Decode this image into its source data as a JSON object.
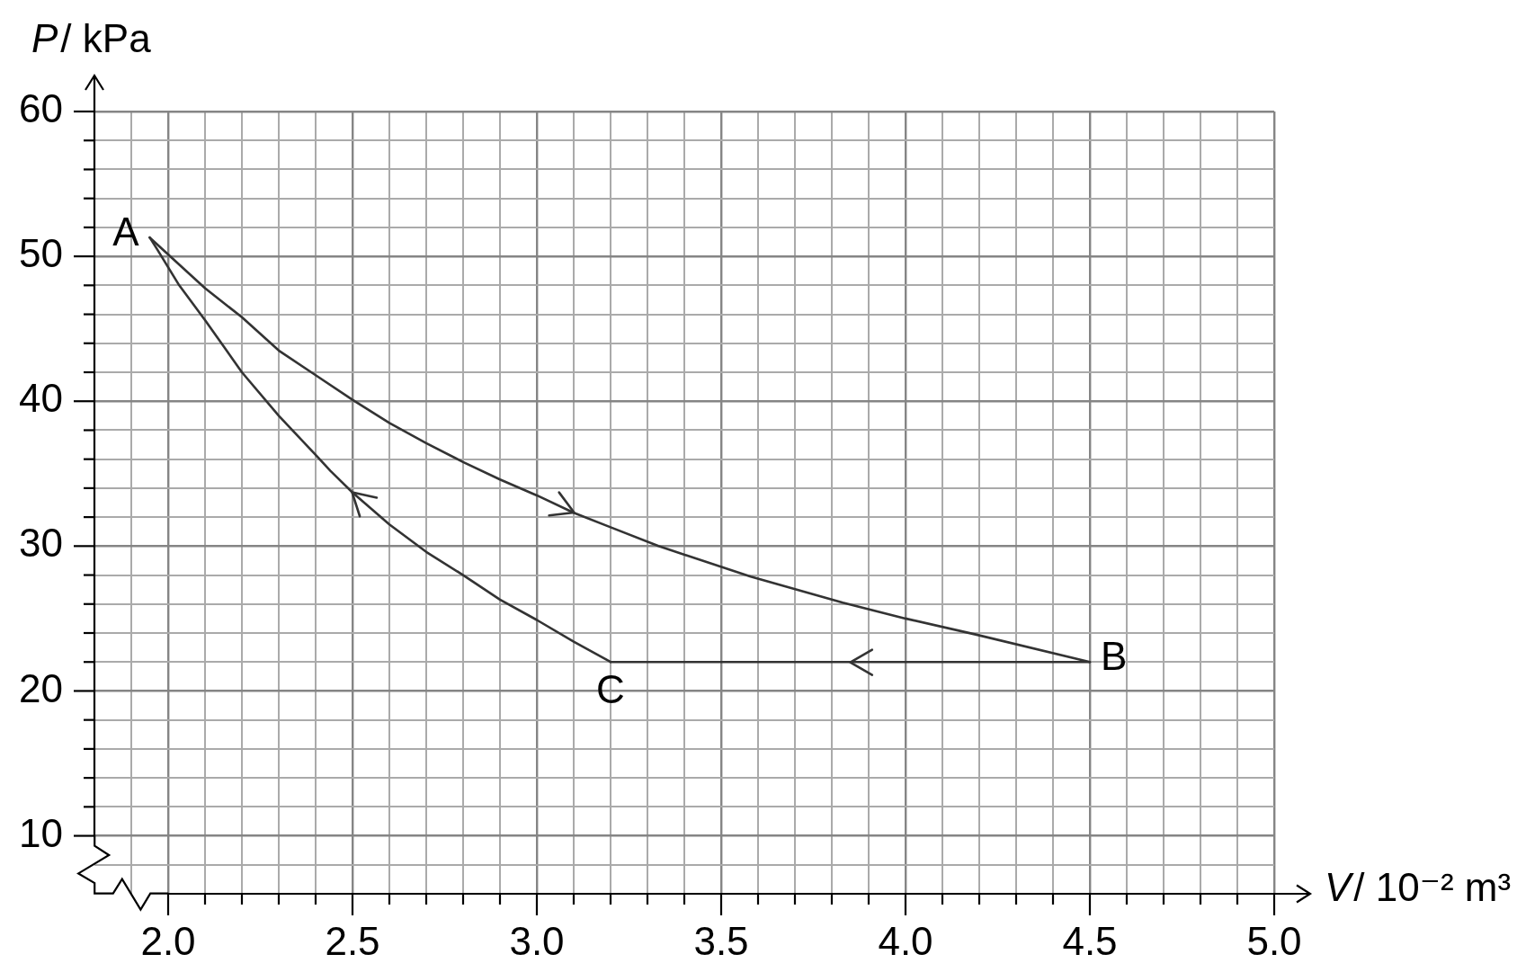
{
  "chart_data": {
    "type": "line",
    "xlabel": "V/ 10⁻² m³",
    "ylabel": "P/ kPa",
    "series": [
      {
        "color": "#333333",
        "x": [
          1.95,
          2.1,
          2.2,
          2.3,
          2.4,
          2.5,
          2.6,
          2.7,
          2.8,
          2.9,
          3.0,
          3.1,
          3.2,
          3.33,
          3.58,
          3.83,
          4.0,
          4.19,
          4.5
        ],
        "values": [
          51.3,
          47.8,
          45.8,
          43.5,
          41.8,
          40.1,
          38.5,
          37.1,
          35.8,
          34.6,
          33.5,
          32.3,
          31.3,
          30.0,
          27.9,
          26.1,
          25.0,
          23.9,
          22.0
        ]
      },
      {
        "color": "#333333",
        "x": [
          4.5,
          3.2
        ],
        "values": [
          22.0,
          22.0
        ]
      },
      {
        "color": "#333333",
        "x": [
          3.2,
          3.1,
          3.0,
          2.9,
          2.8,
          2.7,
          2.6,
          2.5,
          2.44,
          2.4,
          2.3,
          2.2,
          2.1,
          2.03,
          1.97,
          1.95
        ],
        "values": [
          22.0,
          23.4,
          24.9,
          26.3,
          28.0,
          29.6,
          31.5,
          33.7,
          35.2,
          36.3,
          39.0,
          42.0,
          45.6,
          48.0,
          50.5,
          51.3
        ]
      }
    ],
    "xlim": [
      1.8,
      5.0
    ],
    "ylim": [
      6,
      60
    ],
    "xticks": [
      {
        "value": 1.9,
        "label": null
      },
      {
        "value": 2,
        "label": "2.0"
      },
      {
        "value": 2.1,
        "label": null
      },
      {
        "value": 2.2,
        "label": null
      },
      {
        "value": 2.3,
        "label": null
      },
      {
        "value": 2.4,
        "label": null
      },
      2.5,
      {
        "value": 2.6,
        "label": null
      },
      {
        "value": 2.7,
        "label": null
      },
      {
        "value": 2.8,
        "label": null
      },
      {
        "value": 2.9,
        "label": null
      },
      {
        "value": 3,
        "label": "3.0"
      },
      {
        "value": 3.1,
        "label": null
      },
      {
        "value": 3.2,
        "label": null
      },
      {
        "value": 3.3,
        "label": null
      },
      {
        "value": 3.4,
        "label": null
      },
      3.5,
      {
        "value": 3.6,
        "label": null
      },
      {
        "value": 3.7,
        "label": null
      },
      {
        "value": 3.8,
        "label": null
      },
      {
        "value": 3.9,
        "label": null
      },
      {
        "value": 4,
        "label": "4.0"
      },
      {
        "value": 4.1,
        "label": null
      },
      {
        "value": 4.2,
        "label": null
      },
      {
        "value": 4.3,
        "label": null
      },
      {
        "value": 4.4,
        "label": null
      },
      4.5,
      {
        "value": 4.6,
        "label": null
      },
      {
        "value": 4.7,
        "label": null
      },
      {
        "value": 4.8,
        "label": null
      },
      {
        "value": 4.9,
        "label": null
      },
      {
        "value": 5,
        "label": "5.0"
      }
    ],
    "yticks": [
      {
        "value": 8,
        "label": null
      },
      10,
      {
        "value": 12,
        "label": null
      },
      {
        "value": 14,
        "label": null
      },
      {
        "value": 16,
        "label": null
      },
      {
        "value": 18,
        "label": null
      },
      20,
      {
        "value": 22,
        "label": null
      },
      {
        "value": 24,
        "label": null
      },
      {
        "value": 26,
        "label": null
      },
      {
        "value": 28,
        "label": null
      },
      30,
      {
        "value": 32,
        "label": null
      },
      {
        "value": 34,
        "label": null
      },
      {
        "value": 36,
        "label": null
      },
      {
        "value": 38,
        "label": null
      },
      40,
      {
        "value": 42,
        "label": null
      },
      {
        "value": 44,
        "label": null
      },
      {
        "value": 46,
        "label": null
      },
      {
        "value": 48,
        "label": null
      },
      50,
      {
        "value": 52,
        "label": null
      },
      {
        "value": 54,
        "label": null
      },
      {
        "value": 56,
        "label": null
      },
      {
        "value": 58,
        "label": null
      },
      60
    ],
    "grid": true,
    "line_style": "solid",
    "annotations": [
      {
        "text": "A",
        "x": 1.95,
        "y": 51.3
      },
      {
        "text": "B",
        "x": 4.5,
        "y": 22.0
      },
      {
        "text": "C",
        "x": 3.2,
        "y": 22.0
      }
    ]
  }
}
